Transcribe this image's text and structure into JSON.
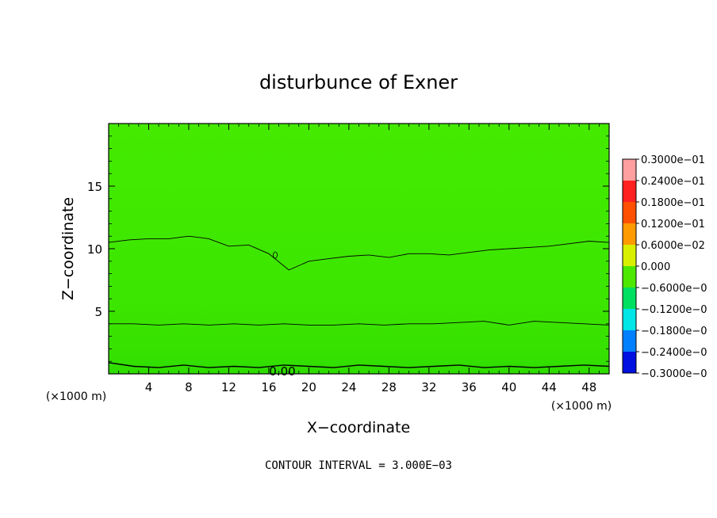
{
  "chart_data": {
    "type": "contour",
    "title": "disturbunce of Exner",
    "xlabel": "X−coordinate",
    "ylabel": "Z−coordinate",
    "x_unit": "(×1000 m)",
    "y_unit": "(×1000 m)",
    "xlim": [
      0,
      50
    ],
    "ylim": [
      0,
      20
    ],
    "x_ticks": [
      4,
      8,
      12,
      16,
      20,
      24,
      28,
      32,
      36,
      40,
      44,
      48
    ],
    "y_ticks": [
      5,
      10,
      15
    ],
    "contour_label": "0.00",
    "contour_interval_text": "CONTOUR INTERVAL = 3.000E−03",
    "contours": [
      {
        "z": [
          0.9,
          0.6,
          0.5,
          0.7,
          0.5,
          0.6,
          0.5,
          0.7,
          0.6,
          0.5,
          0.7,
          0.6,
          0.5,
          0.6,
          0.7,
          0.5,
          0.6,
          0.5,
          0.6,
          0.7,
          0.6
        ]
      },
      {
        "z": [
          4.0,
          4.0,
          3.9,
          4.0,
          3.9,
          4.0,
          3.9,
          4.0,
          3.9,
          3.9,
          4.0,
          3.9,
          4.0,
          4.0,
          4.1,
          4.2,
          3.9,
          4.2,
          4.1,
          4.0,
          3.9
        ]
      },
      {
        "z": [
          10.5,
          10.7,
          10.8,
          10.8,
          11.0,
          10.8,
          10.2,
          10.3,
          9.6,
          8.3,
          9.0,
          9.2,
          9.4,
          9.5,
          9.3,
          9.6,
          9.6,
          9.5,
          9.7,
          9.9,
          10.0,
          10.1,
          10.2,
          10.4,
          10.6,
          10.5
        ]
      }
    ],
    "colorbar": {
      "labels": [
        "0.3000e−01",
        "0.2400e−01",
        "0.1800e−01",
        "0.1200e−01",
        "0.6000e−02",
        "0.000",
        "−0.6000e−0",
        "−0.1200e−0",
        "−0.1800e−0",
        "−0.2400e−0",
        "−0.3000e−0"
      ],
      "colors": [
        "#ff9f9f",
        "#ff2020",
        "#ff5000",
        "#ff9a00",
        "#d8f000",
        "#4de800",
        "#00e060",
        "#00e6e6",
        "#0080ff",
        "#0010e0",
        "#7a00b0"
      ]
    }
  }
}
